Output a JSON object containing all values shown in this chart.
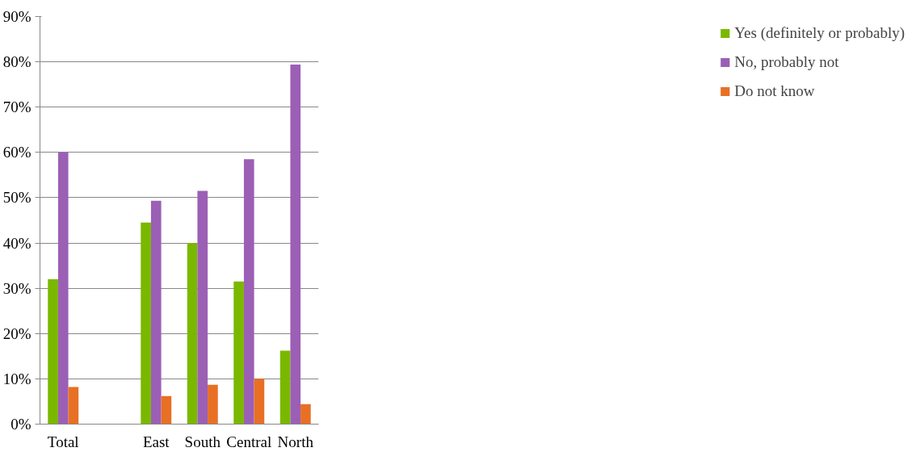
{
  "chart_data": {
    "type": "bar",
    "categories": [
      "Total",
      null,
      "East",
      "South",
      "Central",
      "North"
    ],
    "series": [
      {
        "name": "Yes (definitely or probably)",
        "color": "#7ab800",
        "values": [
          32,
          null,
          44.5,
          40,
          31.5,
          16.2
        ]
      },
      {
        "name": "No, probably not",
        "color": "#9b5fb5",
        "values": [
          60,
          null,
          49.3,
          51.5,
          58.5,
          79.4
        ]
      },
      {
        "name": "Do not know",
        "color": "#e87024",
        "values": [
          8.2,
          null,
          6.2,
          8.7,
          10,
          4.4
        ]
      }
    ],
    "ylim": [
      0,
      90
    ],
    "yticks": [
      {
        "value": 0,
        "label": "0%"
      },
      {
        "value": 10,
        "label": "10%"
      },
      {
        "value": 20,
        "label": "20%"
      },
      {
        "value": 30,
        "label": "30%"
      },
      {
        "value": 40,
        "label": "40%"
      },
      {
        "value": 50,
        "label": "50%"
      },
      {
        "value": 60,
        "label": "60%"
      },
      {
        "value": 70,
        "label": "70%"
      },
      {
        "value": 80,
        "label": "80%"
      },
      {
        "value": 90,
        "label": "90%"
      }
    ],
    "grid": "y",
    "legend": "right"
  }
}
